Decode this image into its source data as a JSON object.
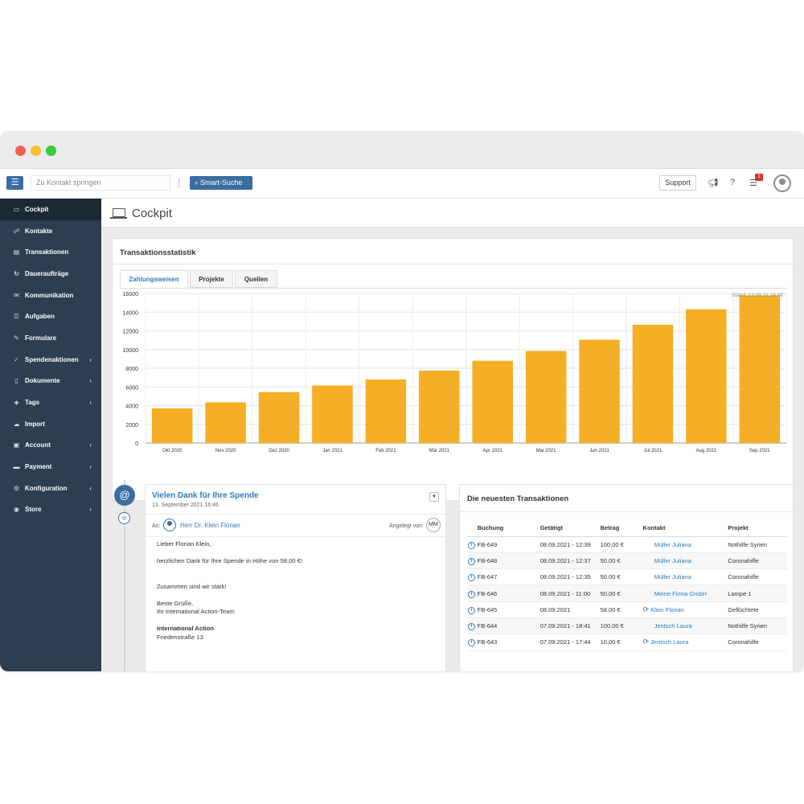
{
  "topbar": {
    "search_placeholder": "Zu Kontakt springen",
    "smart_search": "Smart-Suche",
    "support": "Support",
    "tasks_badge": "1",
    "menu_icon": "hamburger-icon",
    "search_icon": "search-icon"
  },
  "sidebar": {
    "items": [
      {
        "label": "Cockpit",
        "icon": "laptop-icon",
        "glyph": "▭"
      },
      {
        "label": "Kontakte",
        "icon": "users-icon",
        "glyph": "☍"
      },
      {
        "label": "Transaktionen",
        "icon": "money-icon",
        "glyph": "▤"
      },
      {
        "label": "Daueraufträge",
        "icon": "repeat-icon",
        "glyph": "↻"
      },
      {
        "label": "Kommunikation",
        "icon": "chat-icon",
        "glyph": "✉"
      },
      {
        "label": "Aufgaben",
        "icon": "list-icon",
        "glyph": "☰"
      },
      {
        "label": "Formulare",
        "icon": "form-icon",
        "glyph": "✎"
      },
      {
        "label": "Spendenaktionen",
        "icon": "thumbs-up-icon",
        "glyph": "✓"
      },
      {
        "label": "Dokumente",
        "icon": "document-icon",
        "glyph": "▯"
      },
      {
        "label": "Tags",
        "icon": "tag-icon",
        "glyph": "◈"
      },
      {
        "label": "Import",
        "icon": "cloud-upload-icon",
        "glyph": "☁"
      },
      {
        "label": "Account",
        "icon": "briefcase-icon",
        "glyph": "▣"
      },
      {
        "label": "Payment",
        "icon": "credit-card-icon",
        "glyph": "▬"
      },
      {
        "label": "Konfiguration",
        "icon": "gear-icon",
        "glyph": "⚙"
      },
      {
        "label": "Store",
        "icon": "database-icon",
        "glyph": "◉"
      }
    ]
  },
  "page": {
    "title": "Cockpit"
  },
  "stats": {
    "title": "Transaktionsstatistik",
    "tabs": [
      "Zahlungsweisen",
      "Projekte",
      "Quellen"
    ],
    "stand": "Stand: 13.09.21 16:46"
  },
  "chart_data": {
    "type": "bar",
    "categories": [
      "Okt 2020",
      "Nov 2020",
      "Dez 2020",
      "Jan 2021",
      "Feb 2021",
      "Mär 2021",
      "Apr 2021",
      "Mai 2021",
      "Jun 2021",
      "Jul 2021",
      "Aug 2021",
      "Sep 2021"
    ],
    "values": [
      3700,
      4350,
      5450,
      6150,
      6800,
      7750,
      8800,
      9850,
      11050,
      12650,
      14300,
      15800
    ],
    "ylim": [
      0,
      16000
    ],
    "yticks": [
      "16000",
      "14000",
      "12000",
      "10000",
      "8000",
      "6000",
      "4000",
      "2000",
      "0"
    ],
    "grid": true,
    "color": "#f6ae24"
  },
  "mail": {
    "title": "Vielen Dank für Ihre Spende",
    "date": "13. September 2021 16:46",
    "to_label": "An:",
    "to_name": "Herr Dr. Klein Florian",
    "created_by_label": "Angelegt von:",
    "created_by": "MM",
    "body": [
      "Lieber Florian Klein,",
      "",
      "herzlichen Dank für Ihre Spende in Höhe von 58,00 €!",
      "",
      "",
      "Zusammen sind wir stark!",
      "",
      "Beste Grüße,",
      "Ihr International Action-Team",
      "",
      "International Action",
      "Friedenstraße 13"
    ]
  },
  "transactions": {
    "title": "Die neuesten Transaktionen",
    "columns": [
      "Buchung",
      "Getätigt",
      "Betrag",
      "Kontakt",
      "Projekt"
    ],
    "rows": [
      {
        "id": "FB-649",
        "date": "08.09.2021 - 12:39",
        "amount": "100,00 €",
        "recurring": false,
        "contact": "Müller Juliana",
        "project": "Nothilfe Syrien"
      },
      {
        "id": "FB-648",
        "date": "08.09.2021 - 12:37",
        "amount": "50,00 €",
        "recurring": false,
        "contact": "Müller Juliana",
        "project": "Coronahilfe"
      },
      {
        "id": "FB-647",
        "date": "08.09.2021 - 12:35",
        "amount": "50,00 €",
        "recurring": false,
        "contact": "Müller Juliana",
        "project": "Coronahilfe"
      },
      {
        "id": "FB-646",
        "date": "08.09.2021 - 11:00",
        "amount": "50,00 €",
        "recurring": false,
        "contact": "Meine Firma GmbH",
        "project": "Lampe 1"
      },
      {
        "id": "FB-645",
        "date": "08.09.2021",
        "amount": "58,00 €",
        "recurring": true,
        "contact": "Klein Florian",
        "project": "Geflüchtete"
      },
      {
        "id": "FB-644",
        "date": "07.09.2021 - 18:41",
        "amount": "100,00 €",
        "recurring": false,
        "contact": "Jentsch Laura",
        "project": "Nothilfe Syrien"
      },
      {
        "id": "FB-643",
        "date": "07.09.2021 - 17:44",
        "amount": "10,00 €",
        "recurring": true,
        "contact": "Jentsch Laura",
        "project": "Coronahilfe"
      }
    ]
  },
  "colors": {
    "accent": "#3a6da0",
    "link": "#2b7bbf",
    "sidebar": "#2c3e50",
    "bar": "#f6ae24"
  }
}
